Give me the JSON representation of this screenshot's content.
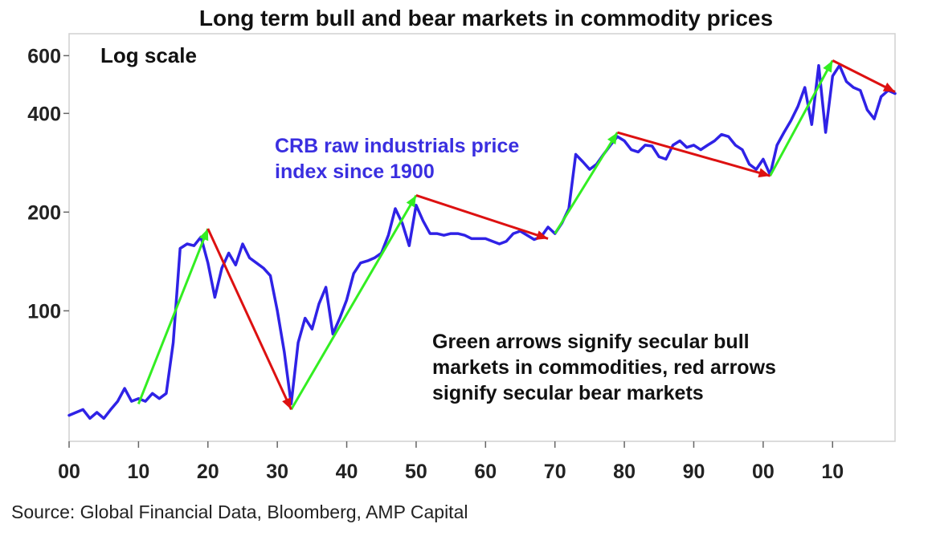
{
  "chart_data": {
    "type": "line",
    "title": "Long term bull and bear markets in commodity prices",
    "scale_note": "Log scale",
    "series_label": [
      "CRB raw industrials price",
      "index since 1900"
    ],
    "annotation": [
      "Green arrows signify secular bull",
      "markets in commodities, red arrows",
      "signify secular bear markets"
    ],
    "source": "Source: Global Financial Data, Bloomberg, AMP Capital",
    "y_scale": "log",
    "ylim": [
      40,
      700
    ],
    "xlim": [
      1900,
      2019
    ],
    "x_tick_values": [
      1900,
      1910,
      1920,
      1930,
      1940,
      1950,
      1960,
      1970,
      1980,
      1990,
      2000,
      2010
    ],
    "x_tick_labels": [
      "00",
      "10",
      "20",
      "30",
      "40",
      "50",
      "60",
      "70",
      "80",
      "90",
      "00",
      "10"
    ],
    "y_tick_values": [
      100,
      200,
      400,
      600
    ],
    "y_tick_labels": [
      "100",
      "200",
      "400",
      "600"
    ],
    "grid": false,
    "colors": {
      "line": "#2f22e6",
      "bull": "#33ee22",
      "bear": "#dd1111"
    },
    "series": [
      {
        "values": [
          [
            1900,
            48
          ],
          [
            1901,
            49
          ],
          [
            1902,
            50
          ],
          [
            1903,
            47
          ],
          [
            1904,
            49
          ],
          [
            1905,
            47
          ],
          [
            1906,
            50
          ],
          [
            1907,
            53
          ],
          [
            1908,
            58
          ],
          [
            1909,
            53
          ],
          [
            1910,
            54
          ],
          [
            1911,
            53
          ],
          [
            1912,
            56
          ],
          [
            1913,
            54
          ],
          [
            1914,
            56
          ],
          [
            1915,
            80
          ],
          [
            1916,
            155
          ],
          [
            1917,
            160
          ],
          [
            1918,
            158
          ],
          [
            1919,
            168
          ],
          [
            1920,
            140
          ],
          [
            1921,
            110
          ],
          [
            1922,
            135
          ],
          [
            1923,
            150
          ],
          [
            1924,
            138
          ],
          [
            1925,
            160
          ],
          [
            1926,
            145
          ],
          [
            1927,
            140
          ],
          [
            1928,
            135
          ],
          [
            1929,
            128
          ],
          [
            1930,
            100
          ],
          [
            1931,
            75
          ],
          [
            1932,
            52
          ],
          [
            1933,
            80
          ],
          [
            1934,
            95
          ],
          [
            1935,
            88
          ],
          [
            1936,
            105
          ],
          [
            1937,
            118
          ],
          [
            1938,
            85
          ],
          [
            1939,
            95
          ],
          [
            1940,
            108
          ],
          [
            1941,
            130
          ],
          [
            1942,
            140
          ],
          [
            1943,
            142
          ],
          [
            1944,
            145
          ],
          [
            1945,
            150
          ],
          [
            1946,
            170
          ],
          [
            1947,
            205
          ],
          [
            1948,
            185
          ],
          [
            1949,
            158
          ],
          [
            1950,
            210
          ],
          [
            1951,
            188
          ],
          [
            1952,
            172
          ],
          [
            1953,
            172
          ],
          [
            1954,
            170
          ],
          [
            1955,
            172
          ],
          [
            1956,
            172
          ],
          [
            1957,
            170
          ],
          [
            1958,
            166
          ],
          [
            1959,
            166
          ],
          [
            1960,
            166
          ],
          [
            1961,
            163
          ],
          [
            1962,
            160
          ],
          [
            1963,
            163
          ],
          [
            1964,
            172
          ],
          [
            1965,
            175
          ],
          [
            1966,
            170
          ],
          [
            1967,
            165
          ],
          [
            1968,
            168
          ],
          [
            1969,
            180
          ],
          [
            1970,
            172
          ],
          [
            1971,
            185
          ],
          [
            1972,
            205
          ],
          [
            1973,
            300
          ],
          [
            1974,
            285
          ],
          [
            1975,
            270
          ],
          [
            1976,
            280
          ],
          [
            1977,
            300
          ],
          [
            1978,
            320
          ],
          [
            1979,
            340
          ],
          [
            1980,
            330
          ],
          [
            1981,
            310
          ],
          [
            1982,
            305
          ],
          [
            1983,
            320
          ],
          [
            1984,
            318
          ],
          [
            1985,
            295
          ],
          [
            1986,
            290
          ],
          [
            1987,
            320
          ],
          [
            1988,
            330
          ],
          [
            1989,
            315
          ],
          [
            1990,
            320
          ],
          [
            1991,
            310
          ],
          [
            1992,
            320
          ],
          [
            1993,
            330
          ],
          [
            1994,
            345
          ],
          [
            1995,
            340
          ],
          [
            1996,
            320
          ],
          [
            1997,
            310
          ],
          [
            1998,
            280
          ],
          [
            1999,
            270
          ],
          [
            2000,
            290
          ],
          [
            2001,
            260
          ],
          [
            2002,
            320
          ],
          [
            2003,
            350
          ],
          [
            2004,
            380
          ],
          [
            2005,
            420
          ],
          [
            2006,
            480
          ],
          [
            2007,
            370
          ],
          [
            2008,
            560
          ],
          [
            2009,
            350
          ],
          [
            2010,
            520
          ],
          [
            2011,
            560
          ],
          [
            2012,
            500
          ],
          [
            2013,
            480
          ],
          [
            2014,
            470
          ],
          [
            2015,
            410
          ],
          [
            2016,
            385
          ],
          [
            2017,
            450
          ],
          [
            2018,
            470
          ],
          [
            2019,
            460
          ]
        ]
      }
    ],
    "bull_arrows": [
      [
        [
          1910,
          52
        ],
        [
          1920,
          178
        ]
      ],
      [
        [
          1932,
          50
        ],
        [
          1950,
          225
        ]
      ],
      [
        [
          1970,
          172
        ],
        [
          1979,
          350
        ]
      ],
      [
        [
          2001,
          258
        ],
        [
          2010,
          580
        ]
      ]
    ],
    "bear_arrows": [
      [
        [
          1920,
          178
        ],
        [
          1932,
          50
        ]
      ],
      [
        [
          1950,
          225
        ],
        [
          1969,
          166
        ]
      ],
      [
        [
          1979,
          350
        ],
        [
          2001,
          258
        ]
      ],
      [
        [
          2010,
          580
        ],
        [
          2019,
          465
        ]
      ]
    ]
  }
}
